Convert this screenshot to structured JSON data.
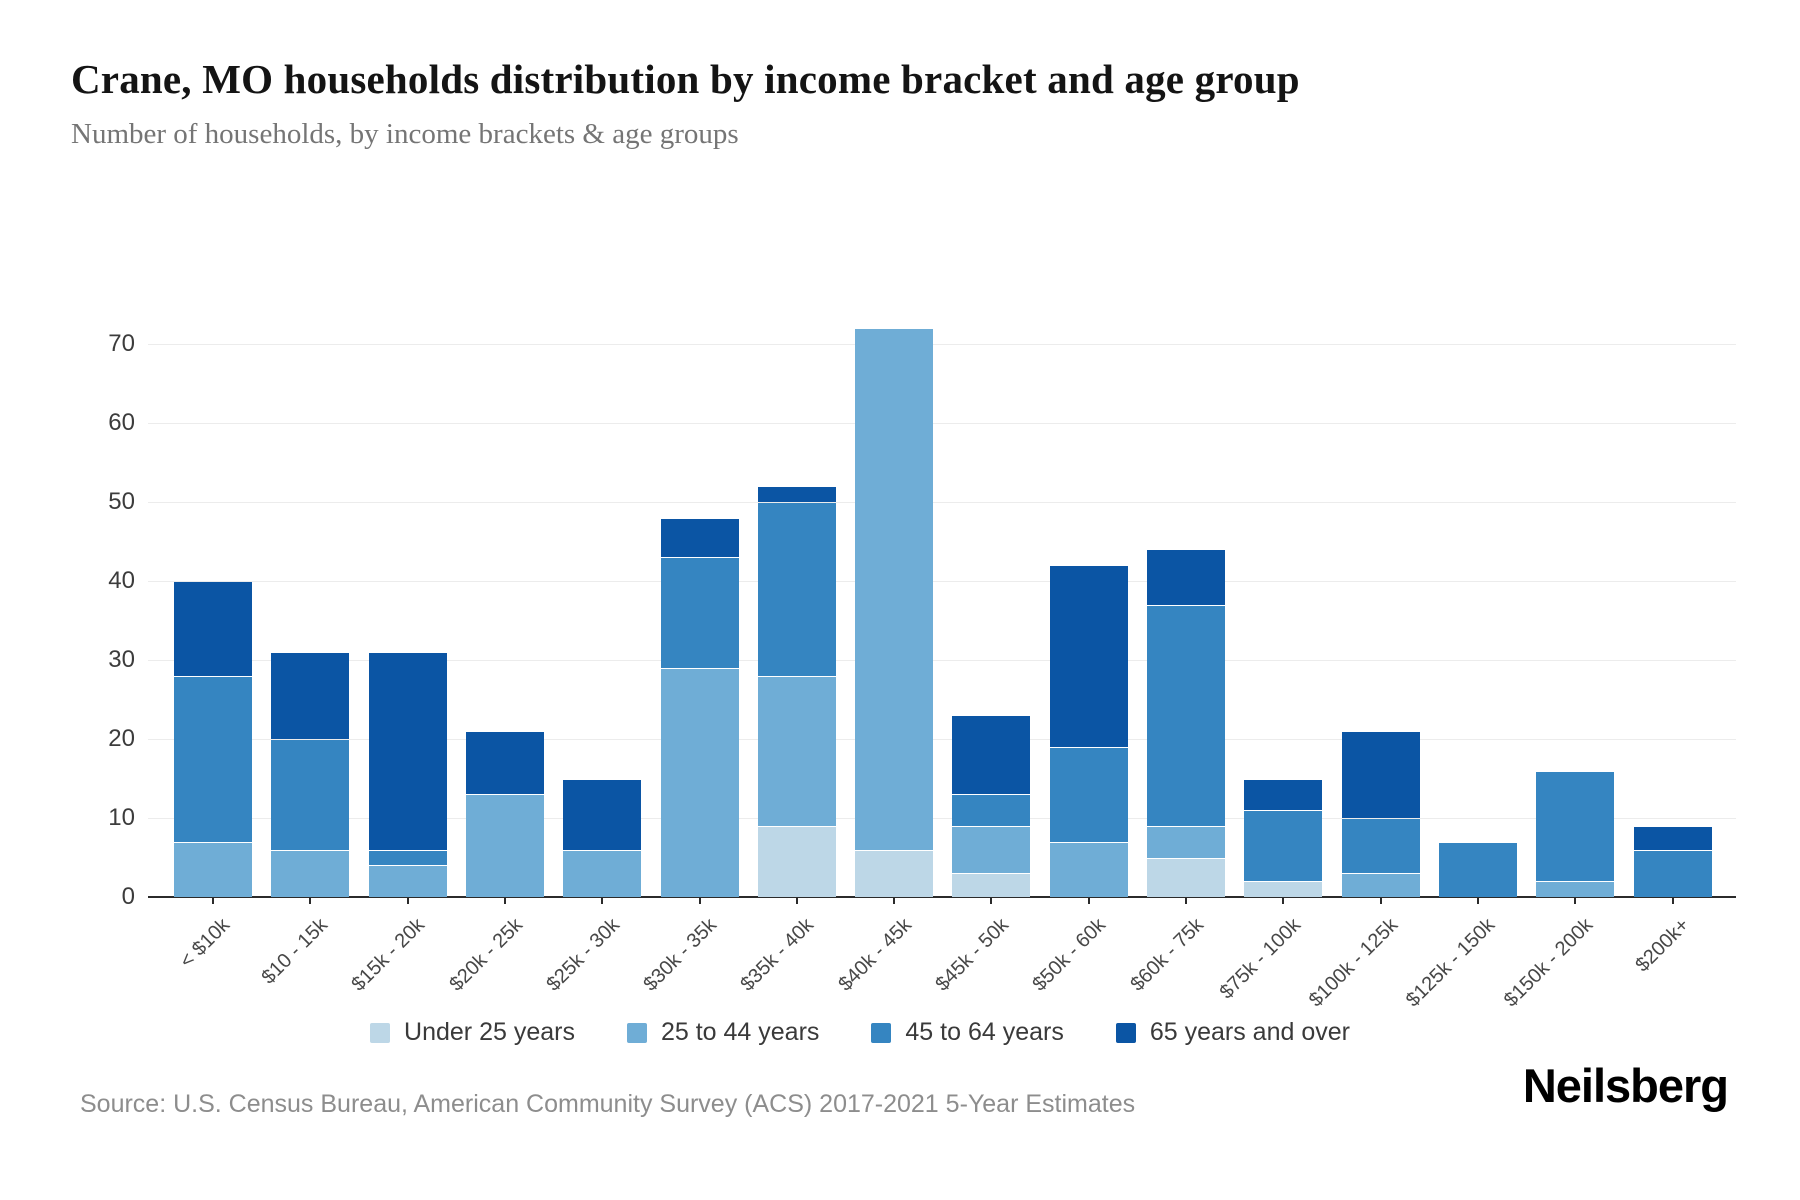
{
  "header": {
    "title": "Crane, MO households distribution by income bracket and age group",
    "subtitle": "Number of households, by income brackets & age groups"
  },
  "chart_data": {
    "type": "bar",
    "stacked": true,
    "title": "Crane, MO households distribution by income bracket and age group",
    "xlabel": "",
    "ylabel": "",
    "categories": [
      "< $10k",
      "$10 - 15k",
      "$15k - 20k",
      "$20k - 25k",
      "$25k - 30k",
      "$30k - 35k",
      "$35k - 40k",
      "$40k - 45k",
      "$45k - 50k",
      "$50k - 60k",
      "$60k - 75k",
      "$75k - 100k",
      "$100k - 125k",
      "$125k - 150k",
      "$150k - 200k",
      "$200k+"
    ],
    "series": [
      {
        "name": "Under 25 years",
        "color": "#bdd7e7",
        "values": [
          0,
          0,
          0,
          0,
          0,
          0,
          9,
          6,
          3,
          0,
          5,
          2,
          0,
          0,
          0,
          0
        ]
      },
      {
        "name": "25 to 44 years",
        "color": "#6fadd6",
        "values": [
          7,
          6,
          4,
          13,
          6,
          29,
          19,
          66,
          6,
          7,
          4,
          0,
          3,
          0,
          2,
          0
        ]
      },
      {
        "name": "45 to 64 years",
        "color": "#3585c1",
        "values": [
          21,
          14,
          2,
          0,
          0,
          14,
          22,
          0,
          4,
          12,
          28,
          9,
          7,
          7,
          14,
          6
        ]
      },
      {
        "name": "65 years and over",
        "color": "#0b55a4",
        "values": [
          12,
          11,
          25,
          8,
          9,
          5,
          2,
          0,
          10,
          23,
          7,
          4,
          11,
          0,
          0,
          3
        ]
      }
    ],
    "totals": [
      40,
      31,
      31,
      21,
      15,
      48,
      52,
      72,
      23,
      42,
      44,
      15,
      21,
      7,
      16,
      9
    ],
    "ylim": [
      0,
      75
    ],
    "yticks": [
      0,
      10,
      20,
      30,
      40,
      50,
      60,
      70
    ],
    "grid": true,
    "legend_position": "bottom"
  },
  "footer": {
    "source": "Source: U.S. Census Bureau, American Community Survey (ACS) 2017-2021 5-Year Estimates",
    "logo": "Neilsberg"
  }
}
